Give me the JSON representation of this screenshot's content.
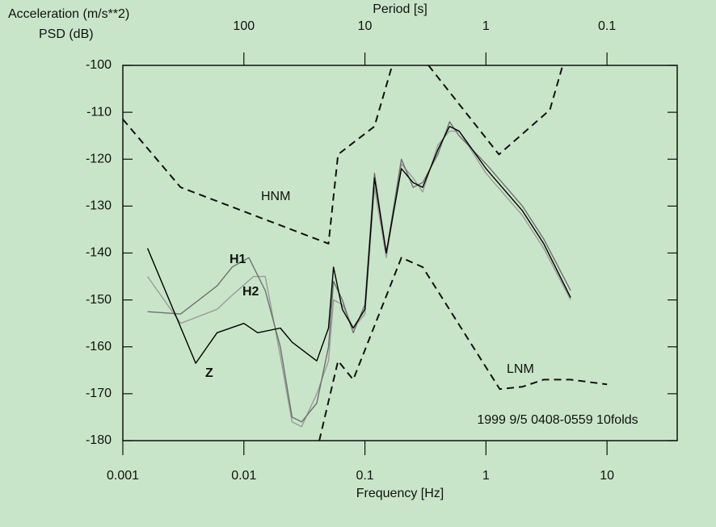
{
  "chart_data": {
    "type": "line",
    "ylabel": [
      "Acceleration (m/s**2)",
      "PSD (dB)"
    ],
    "xlabel": "Frequency [Hz]",
    "x2label": "Period [s]",
    "xscale": "log",
    "xlim": [
      0.001,
      38
    ],
    "xticks": [
      0.001,
      0.01,
      0.1,
      1,
      10
    ],
    "x2lim": [
      1000,
      0.0263
    ],
    "x2ticks": [
      100,
      10,
      1,
      0.1
    ],
    "ylim": [
      -180,
      -100
    ],
    "yticks": [
      -180,
      -170,
      -160,
      -150,
      -140,
      -130,
      -120,
      -110,
      -100
    ],
    "annotation": "1999 9/5 0408-0559 10folds",
    "series": [
      {
        "name": "HNM",
        "color": "#111111",
        "dashed": true,
        "x": [
          0.001,
          0.003,
          0.05,
          0.06,
          0.12,
          0.168,
          0.25,
          0.335,
          1.28,
          3.37,
          4.3
        ],
        "values": [
          -111.5,
          -126,
          -138,
          -119,
          -113,
          -100,
          null,
          -100,
          -119,
          -109.5,
          -100
        ]
      },
      {
        "name": "LNM",
        "color": "#111111",
        "dashed": true,
        "x": [
          0.042,
          0.06,
          0.08,
          0.2,
          0.3,
          1.3,
          2,
          3,
          5,
          10
        ],
        "values": [
          -180,
          -163,
          -167,
          -141,
          -143,
          -169,
          -168.5,
          -167,
          -167,
          -168
        ]
      },
      {
        "name": "H2",
        "color": "#9a9a9a",
        "dashed": false,
        "x": [
          0.0016,
          0.003,
          0.006,
          0.008,
          0.012,
          0.015,
          0.02,
          0.025,
          0.03,
          0.04,
          0.05,
          0.055,
          0.065,
          0.08,
          0.1,
          0.12,
          0.15,
          0.2,
          0.25,
          0.3,
          0.4,
          0.5,
          0.6,
          1,
          2,
          3,
          5
        ],
        "values": [
          -145,
          -155,
          -152,
          -149,
          -145,
          -145,
          -162,
          -176,
          -177,
          -170,
          -163,
          -150,
          -151,
          -156,
          -153,
          -126,
          -141,
          -121,
          -124,
          -127,
          -117,
          -114,
          -114,
          -123,
          -132,
          -139,
          -150
        ]
      },
      {
        "name": "H1",
        "color": "#6f6f6f",
        "dashed": false,
        "x": [
          0.0016,
          0.003,
          0.006,
          0.008,
          0.011,
          0.015,
          0.02,
          0.025,
          0.03,
          0.04,
          0.05,
          0.055,
          0.065,
          0.08,
          0.1,
          0.12,
          0.15,
          0.2,
          0.25,
          0.3,
          0.4,
          0.5,
          0.6,
          1,
          2,
          3,
          5
        ],
        "values": [
          -152.5,
          -153,
          -147,
          -143,
          -141,
          -148,
          -160,
          -175,
          -176,
          -172,
          -160,
          -146,
          -150,
          -157,
          -151,
          -123,
          -140,
          -120,
          -126,
          -125,
          -119,
          -112,
          -115,
          -121,
          -130,
          -137,
          -148
        ]
      },
      {
        "name": "Z",
        "color": "#000000",
        "dashed": false,
        "x": [
          0.0016,
          0.004,
          0.006,
          0.01,
          0.013,
          0.02,
          0.025,
          0.04,
          0.05,
          0.055,
          0.065,
          0.08,
          0.1,
          0.12,
          0.15,
          0.2,
          0.25,
          0.3,
          0.4,
          0.5,
          0.6,
          1,
          2,
          3,
          5
        ],
        "values": [
          -139,
          -163.5,
          -157,
          -155,
          -157,
          -156,
          -159,
          -163,
          -156,
          -143,
          -152,
          -156,
          -152,
          -124,
          -140,
          -122,
          -125,
          -126,
          -118,
          -113,
          -114,
          -122,
          -131,
          -138,
          -149.5
        ]
      }
    ]
  }
}
